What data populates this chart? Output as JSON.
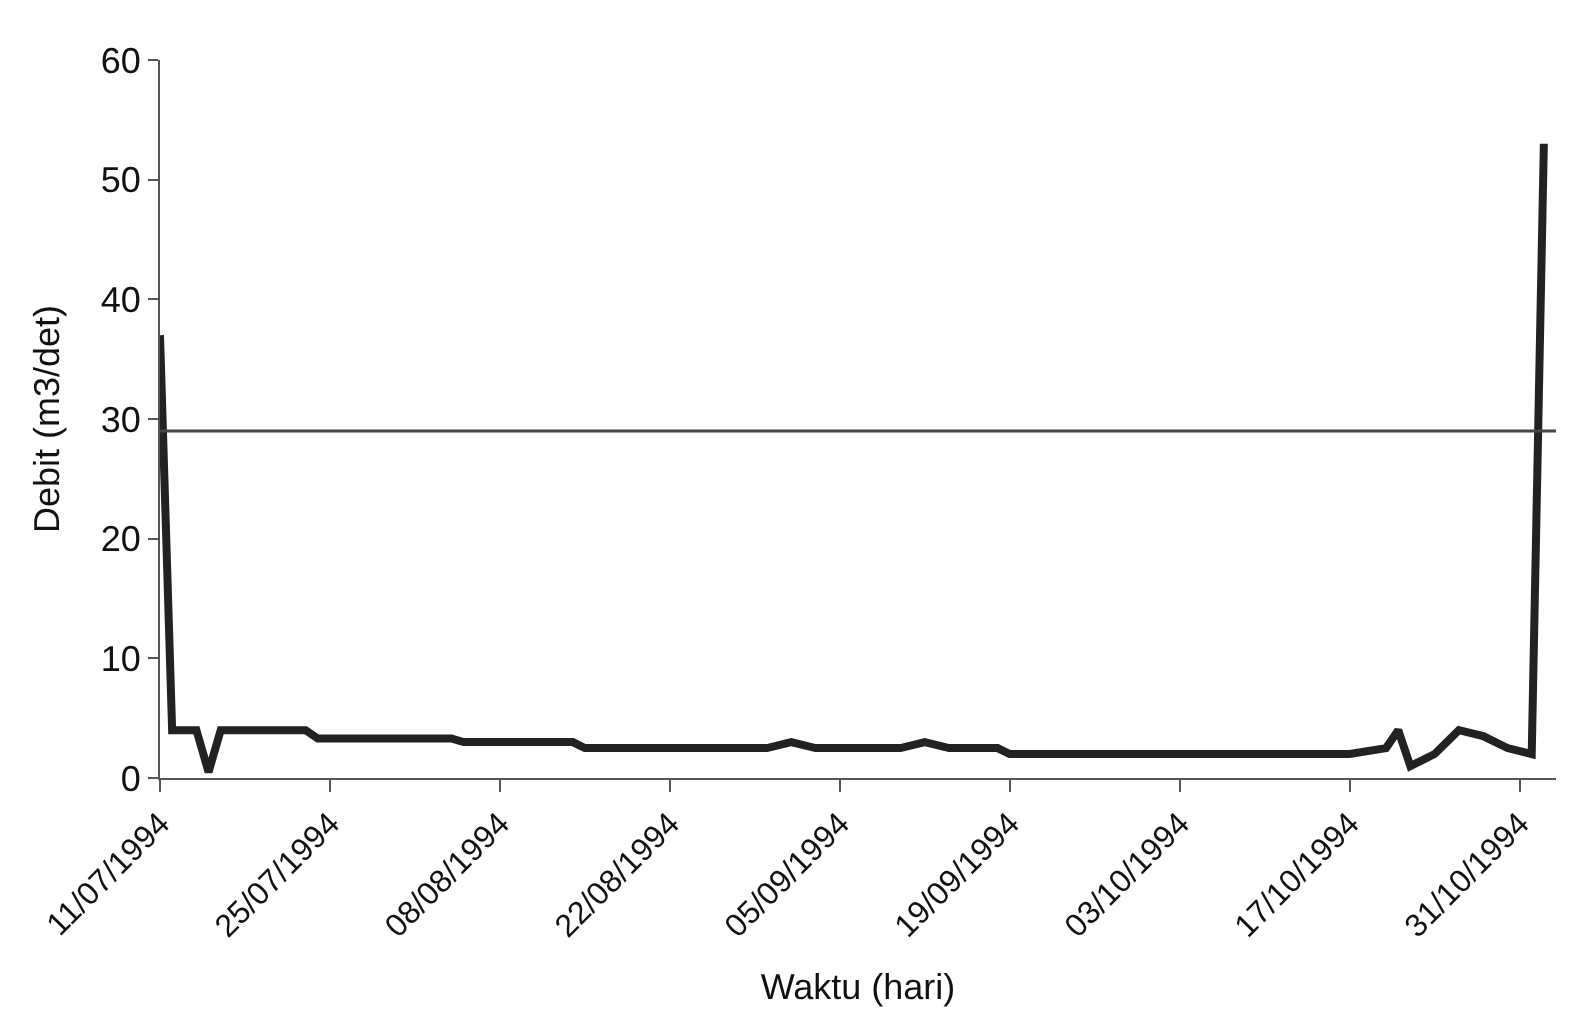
{
  "chart_data": {
    "type": "line",
    "xlabel": "Waktu (hari)",
    "ylabel": "Debit (m3/det)",
    "x": [
      "1994-07-11",
      "1994-07-12",
      "1994-07-14",
      "1994-07-15",
      "1994-07-16",
      "1994-07-23",
      "1994-07-24",
      "1994-08-04",
      "1994-08-05",
      "1994-08-14",
      "1994-08-15",
      "1994-08-30",
      "1994-09-01",
      "1994-09-03",
      "1994-09-10",
      "1994-09-12",
      "1994-09-14",
      "1994-09-18",
      "1994-09-19",
      "1994-10-17",
      "1994-10-20",
      "1994-10-21",
      "1994-10-22",
      "1994-10-24",
      "1994-10-26",
      "1994-10-28",
      "1994-10-30",
      "1994-11-01",
      "1994-11-02"
    ],
    "series": [
      {
        "color": "#222222",
        "values": [
          37,
          4,
          4,
          0.5,
          4,
          4,
          3.3,
          3.3,
          3,
          3,
          2.5,
          2.5,
          3,
          2.5,
          2.5,
          3,
          2.5,
          2.5,
          2,
          2,
          2.5,
          4,
          1,
          2,
          4,
          3.5,
          2.5,
          2,
          53
        ]
      }
    ],
    "ref_lines": [
      {
        "axis": "y",
        "value": 29,
        "color": "#444444",
        "line_style": "solid"
      }
    ],
    "xlim": [
      "1994-07-11",
      "1994-11-03"
    ],
    "xticks": [
      {
        "value": "1994-07-11",
        "label": "11/07/1994"
      },
      {
        "value": "1994-07-25",
        "label": "25/07/1994"
      },
      {
        "value": "1994-08-08",
        "label": "08/08/1994"
      },
      {
        "value": "1994-08-22",
        "label": "22/08/1994"
      },
      {
        "value": "1994-09-05",
        "label": "05/09/1994"
      },
      {
        "value": "1994-09-19",
        "label": "19/09/1994"
      },
      {
        "value": "1994-10-03",
        "label": "03/10/1994"
      },
      {
        "value": "1994-10-17",
        "label": "17/10/1994"
      },
      {
        "value": "1994-10-31",
        "label": "31/10/1994"
      }
    ],
    "ylim": [
      0,
      60
    ],
    "yticks": [
      0,
      10,
      20,
      30,
      40,
      50,
      60
    ],
    "marker": "none",
    "line_style": "solid"
  }
}
